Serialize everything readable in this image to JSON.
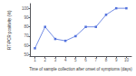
{
  "chart_data": {
    "type": "line",
    "xlabel": "Time of sample collection after onset of symptoms (days)",
    "ylabel": "RT-PCR positivity (%)",
    "x": [
      1,
      2,
      3,
      4,
      5,
      6,
      7,
      8,
      9,
      10
    ],
    "values": [
      57,
      80,
      67,
      65,
      70,
      80,
      80,
      93,
      100,
      100
    ],
    "xlim": [
      0.5,
      10.5
    ],
    "ylim": [
      48,
      105
    ],
    "xticks": [
      1,
      2,
      3,
      4,
      5,
      6,
      7,
      8,
      9,
      10
    ],
    "yticks": [
      50,
      60,
      70,
      80,
      90,
      100
    ],
    "marker": "square",
    "grid": false
  }
}
